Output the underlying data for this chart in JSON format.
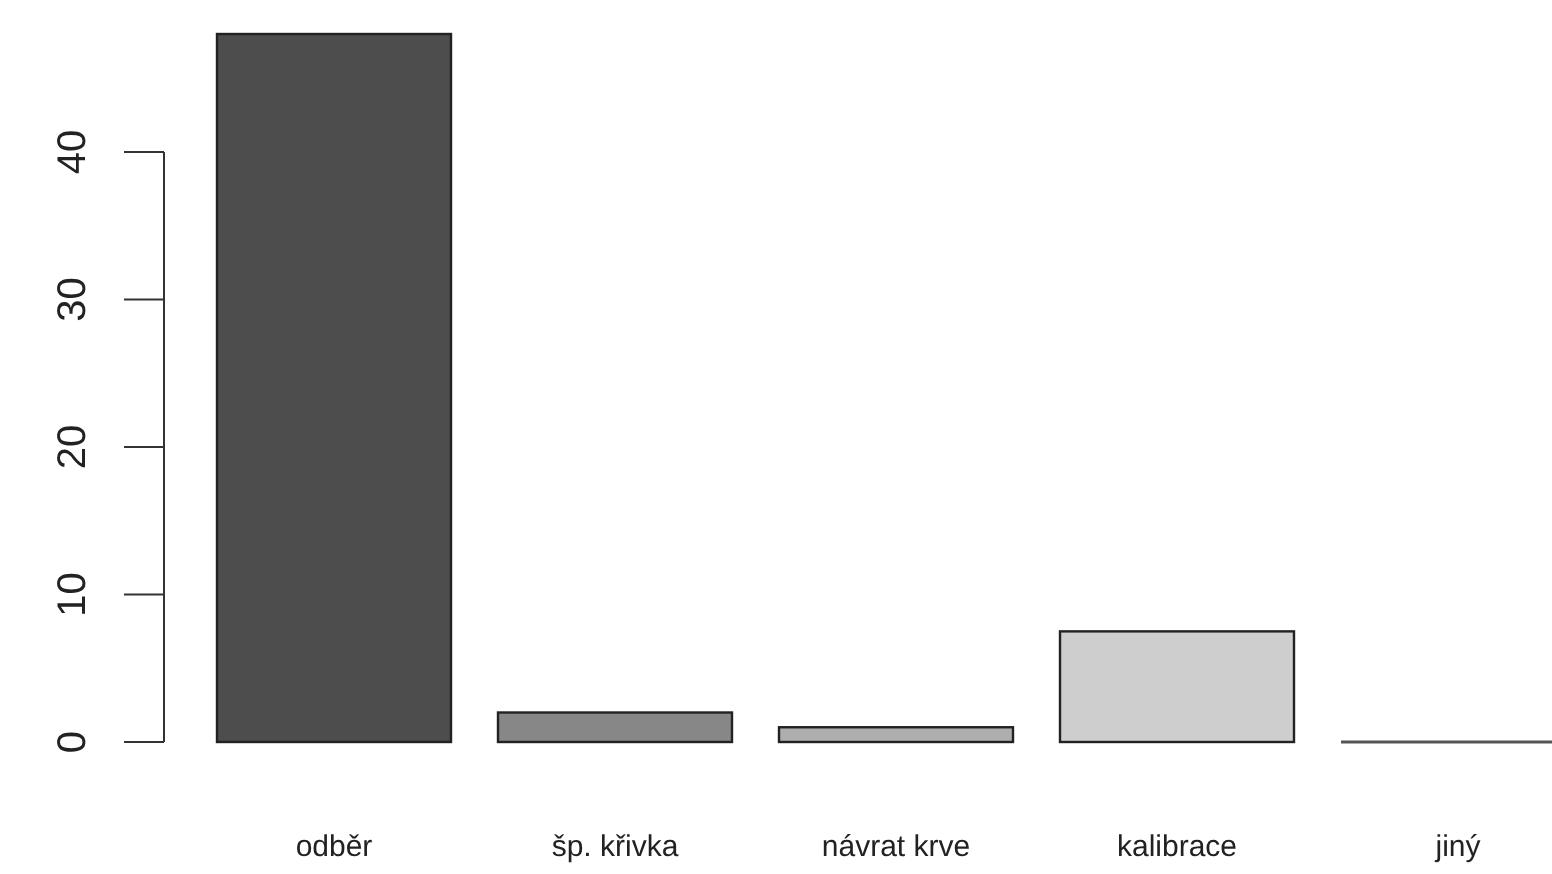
{
  "chart_data": {
    "type": "bar",
    "categories": [
      "odběr",
      "šp. křivka",
      "návrat krve",
      "kalibrace",
      "jiný"
    ],
    "values": [
      48,
      2,
      1,
      7.5,
      0
    ],
    "colors": [
      "#4d4d4d",
      "#878787",
      "#aeaeae",
      "#cecece",
      "#e6e6e6"
    ],
    "ylim": [
      0,
      48
    ],
    "yticks": [
      0,
      10,
      20,
      30,
      40
    ],
    "grid": false
  }
}
